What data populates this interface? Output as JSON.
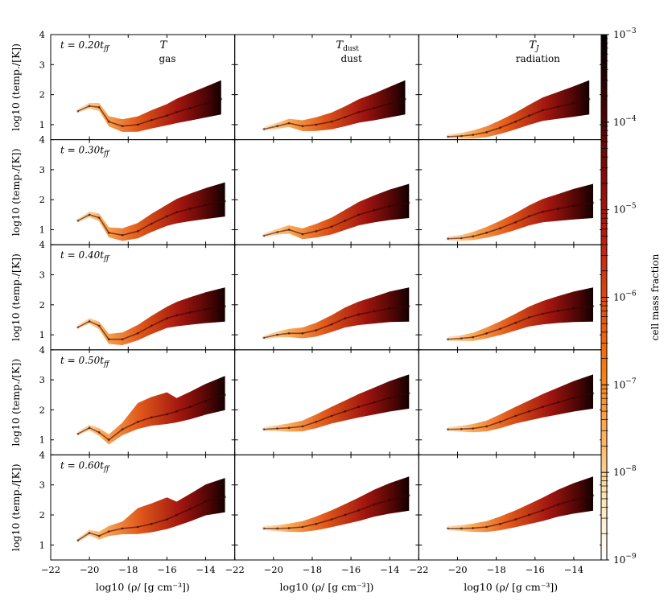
{
  "chart_data": {
    "type": "heatmap",
    "title": "",
    "layout": "5 rows x 3 columns of 2D histograms (phase diagrams)",
    "columns": [
      {
        "symbol": "T",
        "sub": "",
        "desc": "gas"
      },
      {
        "symbol": "T",
        "sub": "dust",
        "desc": "dust"
      },
      {
        "symbol": "T",
        "sub": "J",
        "desc": "radiation"
      }
    ],
    "rows": [
      {
        "time_label": "t = 0.20t",
        "time_sub": "ff",
        "t_ff": 0.2
      },
      {
        "time_label": "t = 0.30t",
        "time_sub": "ff",
        "t_ff": 0.3
      },
      {
        "time_label": "t = 0.40t",
        "time_sub": "ff",
        "t_ff": 0.4
      },
      {
        "time_label": "t = 0.50t",
        "time_sub": "ff",
        "t_ff": 0.5
      },
      {
        "time_label": "t = 0.60t",
        "time_sub": "ff",
        "t_ff": 0.6
      }
    ],
    "xlabel": "log10 (ρ/ [g cm⁻³])",
    "ylabel": "log10 (temp./[K])",
    "xlim": [
      -22,
      -12.5
    ],
    "ylim": [
      0.5,
      4
    ],
    "xticks": [
      "−22",
      "−20",
      "−18",
      "−16",
      "−14"
    ],
    "yticks": [
      "1",
      "2",
      "3",
      "4"
    ],
    "colorbar": {
      "label": "cell mass fraction",
      "scale": "log",
      "range": [
        1e-09,
        0.001
      ],
      "tick_mantissa": "10",
      "tick_exponents": [
        "−3",
        "−4",
        "−5",
        "−6",
        "−7",
        "−8",
        "−9"
      ],
      "colors": [
        "#ffffff",
        "#ffe2b0",
        "#ffaa52",
        "#f7760c",
        "#dd4811",
        "#b8190f",
        "#7e0a0a",
        "#3b0303",
        "#000000"
      ]
    },
    "distributions": {
      "gas": [
        [
          {
            "x": -20.6,
            "y": 1.45
          },
          {
            "x": -20.0,
            "y": 1.62
          },
          {
            "x": -19.5,
            "y": 1.58
          },
          {
            "x": -19.0,
            "y": 1.1
          },
          {
            "x": -18.3,
            "y": 0.95
          },
          {
            "x": -17.5,
            "y": 1.0
          },
          {
            "x": -16.8,
            "y": 1.15
          },
          {
            "x": -16.0,
            "y": 1.3
          },
          {
            "x": -15.5,
            "y": 1.42
          },
          {
            "x": -14.8,
            "y": 1.55
          },
          {
            "x": -14.0,
            "y": 1.7
          },
          {
            "x": -13.2,
            "y": 1.85
          }
        ],
        [
          {
            "x": -20.6,
            "y": 1.3
          },
          {
            "x": -20.0,
            "y": 1.5
          },
          {
            "x": -19.5,
            "y": 1.4
          },
          {
            "x": -19.0,
            "y": 0.9
          },
          {
            "x": -18.3,
            "y": 0.82
          },
          {
            "x": -17.5,
            "y": 0.95
          },
          {
            "x": -16.8,
            "y": 1.2
          },
          {
            "x": -16.0,
            "y": 1.45
          },
          {
            "x": -15.5,
            "y": 1.58
          },
          {
            "x": -14.8,
            "y": 1.7
          },
          {
            "x": -14.0,
            "y": 1.82
          },
          {
            "x": -13.0,
            "y": 1.95
          }
        ],
        [
          {
            "x": -20.6,
            "y": 1.25
          },
          {
            "x": -20.0,
            "y": 1.45
          },
          {
            "x": -19.5,
            "y": 1.3
          },
          {
            "x": -19.0,
            "y": 0.85
          },
          {
            "x": -18.3,
            "y": 0.85
          },
          {
            "x": -17.5,
            "y": 1.05
          },
          {
            "x": -16.8,
            "y": 1.3
          },
          {
            "x": -16.0,
            "y": 1.55
          },
          {
            "x": -15.5,
            "y": 1.65
          },
          {
            "x": -14.8,
            "y": 1.75
          },
          {
            "x": -14.0,
            "y": 1.85
          },
          {
            "x": -13.0,
            "y": 1.95
          }
        ],
        [
          {
            "x": -20.6,
            "y": 1.2
          },
          {
            "x": -20.0,
            "y": 1.4
          },
          {
            "x": -19.5,
            "y": 1.25
          },
          {
            "x": -19.0,
            "y": 1.0
          },
          {
            "x": -18.3,
            "y": 1.35
          },
          {
            "x": -17.5,
            "y": 1.6
          },
          {
            "x": -16.8,
            "y": 1.75
          },
          {
            "x": -16.0,
            "y": 1.85
          },
          {
            "x": -15.5,
            "y": 1.95
          },
          {
            "x": -14.8,
            "y": 2.1
          },
          {
            "x": -14.0,
            "y": 2.3
          },
          {
            "x": -13.0,
            "y": 2.5
          }
        ],
        [
          {
            "x": -20.6,
            "y": 1.15
          },
          {
            "x": -20.0,
            "y": 1.4
          },
          {
            "x": -19.5,
            "y": 1.3
          },
          {
            "x": -19.0,
            "y": 1.45
          },
          {
            "x": -18.3,
            "y": 1.55
          },
          {
            "x": -17.5,
            "y": 1.6
          },
          {
            "x": -16.8,
            "y": 1.7
          },
          {
            "x": -16.0,
            "y": 1.85
          },
          {
            "x": -15.5,
            "y": 2.0
          },
          {
            "x": -14.8,
            "y": 2.2
          },
          {
            "x": -14.0,
            "y": 2.45
          },
          {
            "x": -13.0,
            "y": 2.6
          }
        ]
      ],
      "dust": [
        [
          {
            "x": -20.5,
            "y": 0.85
          },
          {
            "x": -19.8,
            "y": 0.95
          },
          {
            "x": -19.2,
            "y": 1.05
          },
          {
            "x": -18.5,
            "y": 0.95
          },
          {
            "x": -17.8,
            "y": 1.0
          },
          {
            "x": -17.0,
            "y": 1.1
          },
          {
            "x": -16.3,
            "y": 1.25
          },
          {
            "x": -15.6,
            "y": 1.42
          },
          {
            "x": -14.8,
            "y": 1.55
          },
          {
            "x": -14.0,
            "y": 1.7
          },
          {
            "x": -13.2,
            "y": 1.85
          }
        ],
        [
          {
            "x": -20.5,
            "y": 0.8
          },
          {
            "x": -19.8,
            "y": 0.92
          },
          {
            "x": -19.2,
            "y": 1.0
          },
          {
            "x": -18.5,
            "y": 0.85
          },
          {
            "x": -17.8,
            "y": 0.95
          },
          {
            "x": -17.0,
            "y": 1.1
          },
          {
            "x": -16.3,
            "y": 1.3
          },
          {
            "x": -15.6,
            "y": 1.5
          },
          {
            "x": -14.8,
            "y": 1.65
          },
          {
            "x": -14.0,
            "y": 1.78
          },
          {
            "x": -13.0,
            "y": 1.9
          }
        ],
        [
          {
            "x": -20.5,
            "y": 0.9
          },
          {
            "x": -19.8,
            "y": 1.0
          },
          {
            "x": -19.2,
            "y": 1.05
          },
          {
            "x": -18.5,
            "y": 1.05
          },
          {
            "x": -17.8,
            "y": 1.15
          },
          {
            "x": -17.0,
            "y": 1.35
          },
          {
            "x": -16.3,
            "y": 1.55
          },
          {
            "x": -15.6,
            "y": 1.68
          },
          {
            "x": -14.8,
            "y": 1.78
          },
          {
            "x": -14.0,
            "y": 1.88
          },
          {
            "x": -13.0,
            "y": 1.95
          }
        ],
        [
          {
            "x": -20.5,
            "y": 1.35
          },
          {
            "x": -19.8,
            "y": 1.38
          },
          {
            "x": -19.2,
            "y": 1.4
          },
          {
            "x": -18.5,
            "y": 1.45
          },
          {
            "x": -17.8,
            "y": 1.6
          },
          {
            "x": -17.0,
            "y": 1.8
          },
          {
            "x": -16.3,
            "y": 1.95
          },
          {
            "x": -15.6,
            "y": 2.1
          },
          {
            "x": -14.8,
            "y": 2.25
          },
          {
            "x": -14.0,
            "y": 2.4
          },
          {
            "x": -13.0,
            "y": 2.55
          }
        ],
        [
          {
            "x": -20.5,
            "y": 1.55
          },
          {
            "x": -19.8,
            "y": 1.55
          },
          {
            "x": -19.2,
            "y": 1.56
          },
          {
            "x": -18.5,
            "y": 1.6
          },
          {
            "x": -17.8,
            "y": 1.7
          },
          {
            "x": -17.0,
            "y": 1.85
          },
          {
            "x": -16.3,
            "y": 2.0
          },
          {
            "x": -15.6,
            "y": 2.15
          },
          {
            "x": -14.8,
            "y": 2.35
          },
          {
            "x": -14.0,
            "y": 2.5
          },
          {
            "x": -13.0,
            "y": 2.65
          }
        ]
      ],
      "radiation": [
        [
          {
            "x": -20.5,
            "y": 0.6
          },
          {
            "x": -19.8,
            "y": 0.62
          },
          {
            "x": -19.2,
            "y": 0.66
          },
          {
            "x": -18.5,
            "y": 0.75
          },
          {
            "x": -17.8,
            "y": 0.9
          },
          {
            "x": -17.0,
            "y": 1.1
          },
          {
            "x": -16.3,
            "y": 1.3
          },
          {
            "x": -15.6,
            "y": 1.48
          },
          {
            "x": -14.8,
            "y": 1.6
          },
          {
            "x": -14.0,
            "y": 1.72
          },
          {
            "x": -13.2,
            "y": 1.85
          }
        ],
        [
          {
            "x": -20.5,
            "y": 0.7
          },
          {
            "x": -19.8,
            "y": 0.72
          },
          {
            "x": -19.2,
            "y": 0.78
          },
          {
            "x": -18.5,
            "y": 0.9
          },
          {
            "x": -17.8,
            "y": 1.05
          },
          {
            "x": -17.0,
            "y": 1.25
          },
          {
            "x": -16.3,
            "y": 1.45
          },
          {
            "x": -15.6,
            "y": 1.6
          },
          {
            "x": -14.8,
            "y": 1.7
          },
          {
            "x": -14.0,
            "y": 1.8
          },
          {
            "x": -13.0,
            "y": 1.9
          }
        ],
        [
          {
            "x": -20.5,
            "y": 0.85
          },
          {
            "x": -19.8,
            "y": 0.88
          },
          {
            "x": -19.2,
            "y": 0.92
          },
          {
            "x": -18.5,
            "y": 1.05
          },
          {
            "x": -17.8,
            "y": 1.2
          },
          {
            "x": -17.0,
            "y": 1.4
          },
          {
            "x": -16.3,
            "y": 1.58
          },
          {
            "x": -15.6,
            "y": 1.7
          },
          {
            "x": -14.8,
            "y": 1.8
          },
          {
            "x": -14.0,
            "y": 1.88
          },
          {
            "x": -13.0,
            "y": 1.95
          }
        ],
        [
          {
            "x": -20.5,
            "y": 1.35
          },
          {
            "x": -19.8,
            "y": 1.36
          },
          {
            "x": -19.2,
            "y": 1.38
          },
          {
            "x": -18.5,
            "y": 1.45
          },
          {
            "x": -17.8,
            "y": 1.6
          },
          {
            "x": -17.0,
            "y": 1.8
          },
          {
            "x": -16.3,
            "y": 1.95
          },
          {
            "x": -15.6,
            "y": 2.1
          },
          {
            "x": -14.8,
            "y": 2.25
          },
          {
            "x": -14.0,
            "y": 2.4
          },
          {
            "x": -13.0,
            "y": 2.55
          }
        ],
        [
          {
            "x": -20.5,
            "y": 1.55
          },
          {
            "x": -19.8,
            "y": 1.55
          },
          {
            "x": -19.2,
            "y": 1.56
          },
          {
            "x": -18.5,
            "y": 1.6
          },
          {
            "x": -17.8,
            "y": 1.7
          },
          {
            "x": -17.0,
            "y": 1.85
          },
          {
            "x": -16.3,
            "y": 2.0
          },
          {
            "x": -15.6,
            "y": 2.15
          },
          {
            "x": -14.8,
            "y": 2.35
          },
          {
            "x": -14.0,
            "y": 2.5
          },
          {
            "x": -13.0,
            "y": 2.65
          }
        ]
      ]
    }
  }
}
